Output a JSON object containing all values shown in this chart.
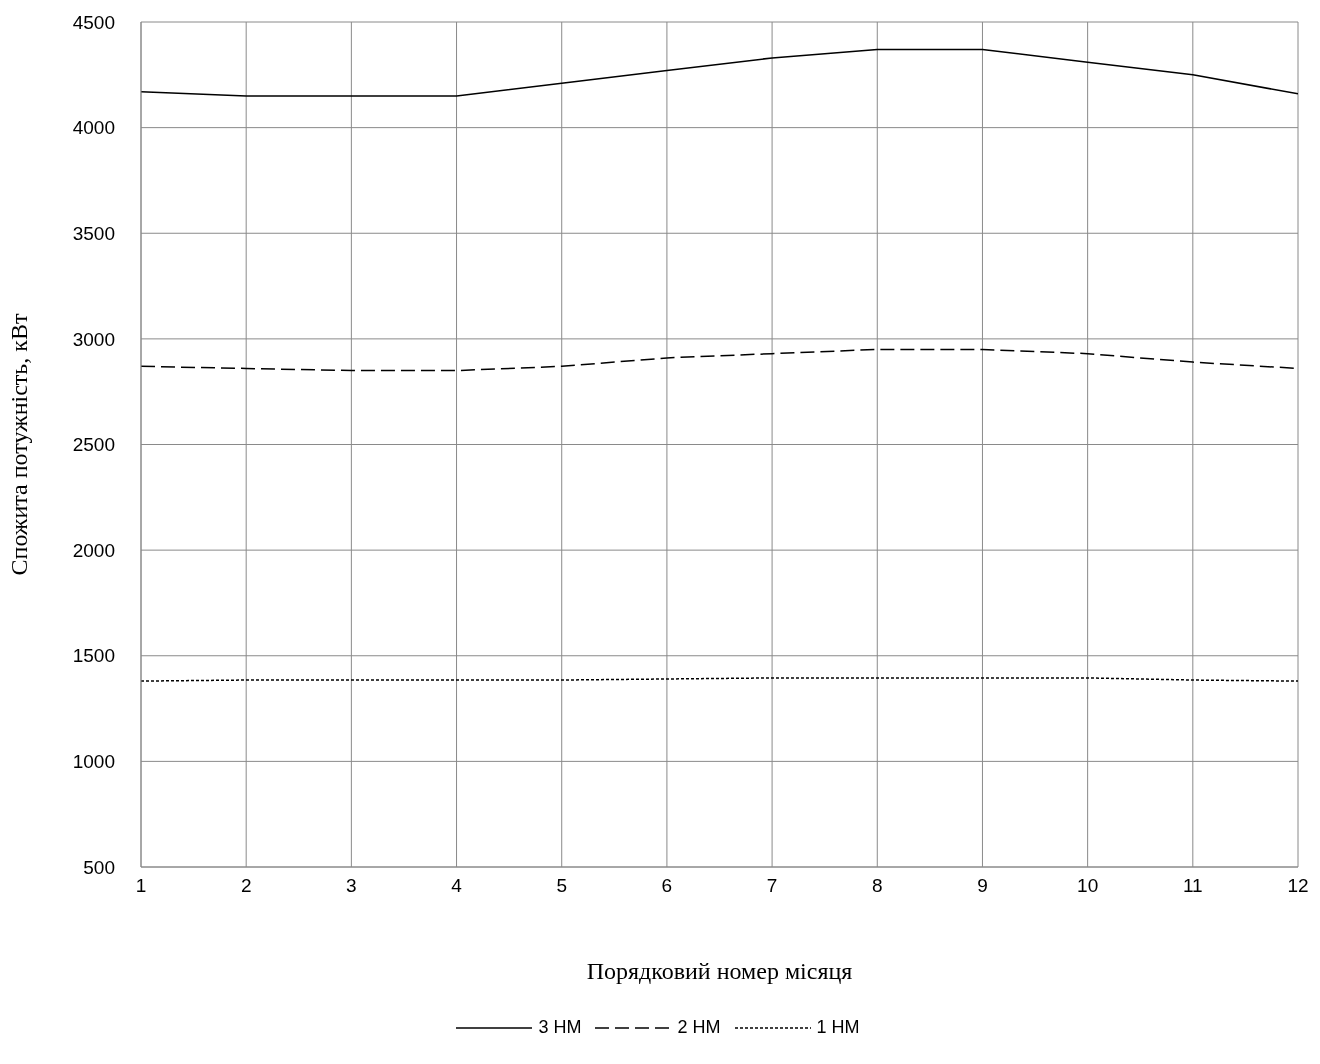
{
  "chart_data": {
    "type": "line",
    "xlabel": "Порядковий номер місяця",
    "ylabel": "Спожита потужність, кВт",
    "x": [
      1,
      2,
      3,
      4,
      5,
      6,
      7,
      8,
      9,
      10,
      11,
      12
    ],
    "series": [
      {
        "name": "3 НМ",
        "color": "#000000",
        "line_style": "solid",
        "values": [
          4170,
          4150,
          4150,
          4150,
          4210,
          4270,
          4330,
          4370,
          4370,
          4310,
          4250,
          4160
        ]
      },
      {
        "name": "2 НМ",
        "color": "#000000",
        "line_style": "dashed",
        "values": [
          2870,
          2860,
          2850,
          2850,
          2870,
          2910,
          2930,
          2950,
          2950,
          2930,
          2890,
          2860
        ]
      },
      {
        "name": "1 НМ",
        "color": "#000000",
        "line_style": "dotted",
        "values": [
          1380,
          1385,
          1385,
          1385,
          1385,
          1390,
          1395,
          1395,
          1395,
          1395,
          1385,
          1380
        ]
      }
    ],
    "xlim": [
      1,
      12
    ],
    "xticks": [
      1,
      2,
      3,
      4,
      5,
      6,
      7,
      8,
      9,
      10,
      11,
      12
    ],
    "ylim": [
      500,
      4500
    ],
    "yticks": [
      500,
      1000,
      1500,
      2000,
      2500,
      3000,
      3500,
      4000,
      4500
    ],
    "grid": true,
    "legend": "bottom",
    "marker": "none"
  }
}
